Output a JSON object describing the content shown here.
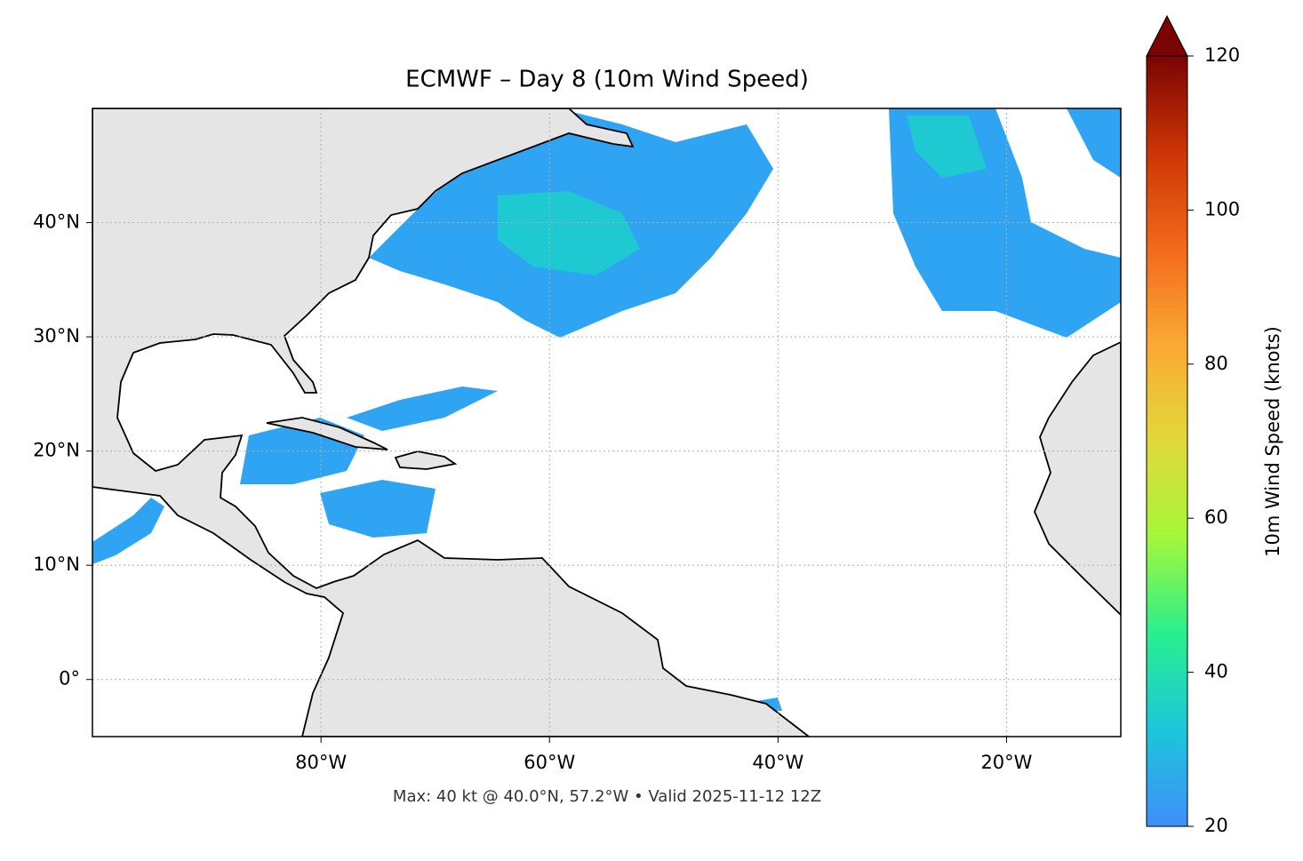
{
  "chart_data": {
    "type": "map",
    "title": "ECMWF – Day 8 (10m Wind Speed)",
    "annotation": "Max: 40 kt @ 40.0°N, 57.2°W • Valid 2025-11-12 12Z",
    "xlim": [
      -100,
      -10
    ],
    "ylim": [
      -5,
      50
    ],
    "xticks": [
      {
        "value": -80,
        "label": "80°W"
      },
      {
        "value": -60,
        "label": "60°W"
      },
      {
        "value": -40,
        "label": "40°W"
      },
      {
        "value": -20,
        "label": "20°W"
      }
    ],
    "yticks": [
      {
        "value": 0,
        "label": "0°"
      },
      {
        "value": 10,
        "label": "10°N"
      },
      {
        "value": 20,
        "label": "20°N"
      },
      {
        "value": 30,
        "label": "30°N"
      },
      {
        "value": 40,
        "label": "40°N"
      }
    ],
    "grid": true,
    "colorbar": {
      "label": "10m Wind Speed (knots)",
      "lim": [
        20,
        120
      ],
      "ticks": [
        20,
        40,
        60,
        80,
        100,
        120
      ],
      "colormap": [
        "#3f8ffa",
        "#1cc6da",
        "#28ef8e",
        "#a4f73a",
        "#e1d83a",
        "#fba933",
        "#f26a1c",
        "#cd3505",
        "#7a0403"
      ]
    }
  }
}
